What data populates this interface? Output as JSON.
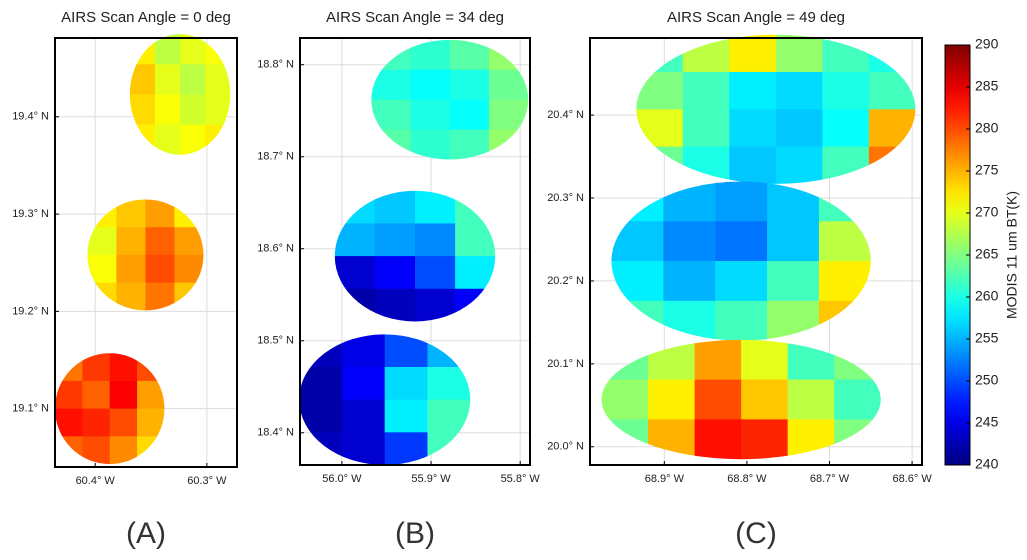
{
  "chart_data": [
    {
      "type": "heatmap",
      "title": "AIRS Scan Angle = 0 deg",
      "panel_label": "(A)",
      "grid": true,
      "xlim": [
        -60.436,
        -60.273
      ],
      "ylim": [
        19.04,
        19.481
      ],
      "xticks": [
        {
          "value": -60.4,
          "label": "60.4° W"
        },
        {
          "value": -60.3,
          "label": "60.3° W"
        }
      ],
      "yticks": [
        {
          "value": 19.1,
          "label": "19.1° N"
        },
        {
          "value": 19.2,
          "label": "19.2° N"
        },
        {
          "value": 19.3,
          "label": "19.3° N"
        },
        {
          "value": 19.4,
          "label": "19.4° N"
        }
      ],
      "footprints": [
        {
          "lon": -60.324,
          "lat": 19.423,
          "rlon": 0.045,
          "rlat": 0.062,
          "values": [
            [
              272,
              268,
              270,
              271
            ],
            [
              274,
              270,
              268,
              270
            ],
            [
              273,
              271,
              269,
              270
            ],
            [
              272,
              270,
              271,
              272
            ]
          ]
        },
        {
          "lon": -60.355,
          "lat": 19.258,
          "rlon": 0.052,
          "rlat": 0.057,
          "values": [
            [
              272,
              274,
              276,
              272
            ],
            [
              270,
              275,
              279,
              276
            ],
            [
              271,
              276,
              280,
              277
            ],
            [
              273,
              275,
              278,
              274
            ]
          ]
        },
        {
          "lon": -60.387,
          "lat": 19.1,
          "rlon": 0.049,
          "rlat": 0.057,
          "values": [
            [
              278,
              281,
              283,
              280
            ],
            [
              281,
              279,
              284,
              276
            ],
            [
              283,
              282,
              280,
              275
            ],
            [
              279,
              280,
              277,
              273
            ]
          ]
        }
      ]
    },
    {
      "type": "heatmap",
      "title": "AIRS Scan Angle = 34 deg",
      "panel_label": "(B)",
      "grid": true,
      "xlim": [
        -56.047,
        -55.789
      ],
      "ylim": [
        18.365,
        18.829
      ],
      "xticks": [
        {
          "value": -56.0,
          "label": "56.0° W"
        },
        {
          "value": -55.9,
          "label": "55.9° W"
        },
        {
          "value": -55.8,
          "label": "55.8° W"
        }
      ],
      "yticks": [
        {
          "value": 18.4,
          "label": "18.4° N"
        },
        {
          "value": 18.5,
          "label": "18.5° N"
        },
        {
          "value": 18.6,
          "label": "18.6° N"
        },
        {
          "value": 18.7,
          "label": "18.7° N"
        },
        {
          "value": 18.8,
          "label": "18.8° N"
        }
      ],
      "footprints": [
        {
          "lon": -55.879,
          "lat": 18.762,
          "rlon": 0.088,
          "rlat": 0.065,
          "values": [
            [
              262,
              261,
              263,
              266
            ],
            [
              260,
              259,
              260,
              264
            ],
            [
              262,
              260,
              259,
              265
            ],
            [
              263,
              261,
              262,
              266
            ]
          ]
        },
        {
          "lon": -55.918,
          "lat": 18.592,
          "rlon": 0.09,
          "rlat": 0.071,
          "values": [
            [
              257,
              256,
              258,
              262
            ],
            [
              255,
              254,
              253,
              262
            ],
            [
              244,
              246,
              250,
              258
            ],
            [
              242,
              243,
              244,
              246
            ]
          ]
        },
        {
          "lon": -55.952,
          "lat": 18.436,
          "rlon": 0.096,
          "rlat": 0.071,
          "values": [
            [
              243,
              245,
              250,
              255
            ],
            [
              242,
              246,
              257,
              260
            ],
            [
              242,
              244,
              258,
              262
            ],
            [
              243,
              244,
              249,
              262
            ]
          ]
        }
      ]
    },
    {
      "type": "heatmap",
      "title": "AIRS Scan Angle = 49 deg",
      "panel_label": "(C)",
      "grid": true,
      "xlim": [
        -68.99,
        -68.588
      ],
      "ylim": [
        19.978,
        20.493
      ],
      "xticks": [
        {
          "value": -68.9,
          "label": "68.9° W"
        },
        {
          "value": -68.8,
          "label": "68.8° W"
        },
        {
          "value": -68.7,
          "label": "68.7° W"
        },
        {
          "value": -68.6,
          "label": "68.6° W"
        }
      ],
      "yticks": [
        {
          "value": 20.0,
          "label": "20.0° N"
        },
        {
          "value": 20.1,
          "label": "20.1° N"
        },
        {
          "value": 20.2,
          "label": "20.2° N"
        },
        {
          "value": 20.3,
          "label": "20.3° N"
        },
        {
          "value": 20.4,
          "label": "20.4° N"
        }
      ],
      "footprints": [
        {
          "lon": -68.765,
          "lat": 20.407,
          "rlon": 0.169,
          "rlat": 0.09,
          "values": [
            [
              262,
              268,
              272,
              266,
              262,
              260
            ],
            [
              265,
              262,
              258,
              257,
              260,
              262
            ],
            [
              270,
              262,
              257,
              256,
              259,
              275
            ],
            [
              264,
              260,
              256,
              257,
              262,
              278
            ]
          ]
        },
        {
          "lon": -68.807,
          "lat": 20.224,
          "rlon": 0.157,
          "rlat": 0.096,
          "values": [
            [
              258,
              255,
              254,
              256,
              262
            ],
            [
              256,
              253,
              252,
              256,
              268
            ],
            [
              258,
              255,
              257,
              262,
              272
            ],
            [
              262,
              260,
              262,
              266,
              274
            ]
          ]
        },
        {
          "lon": -68.807,
          "lat": 20.057,
          "rlon": 0.169,
          "rlat": 0.072,
          "values": [
            [
              264,
              268,
              276,
              270,
              262,
              265
            ],
            [
              266,
              272,
              280,
              274,
              268,
              262
            ],
            [
              264,
              275,
              283,
              282,
              272,
              265
            ]
          ]
        }
      ]
    }
  ],
  "colorbar": {
    "label": "MODIS 11 um BT(K)",
    "colormap": "jet",
    "clim": [
      240,
      290
    ],
    "ticks": [
      240,
      245,
      250,
      255,
      260,
      265,
      270,
      275,
      280,
      285,
      290
    ]
  }
}
